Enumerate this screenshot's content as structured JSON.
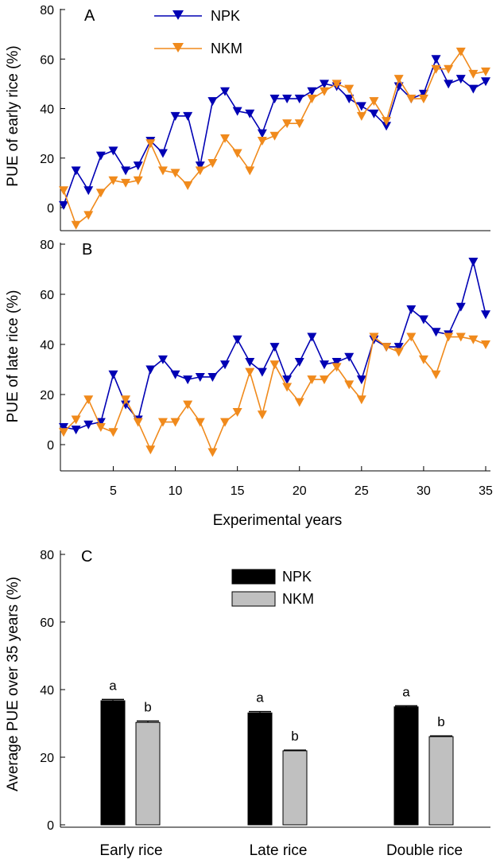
{
  "chart_data": [
    {
      "type": "line",
      "panel": "A",
      "ylabel": "PUE of early rice (%)",
      "xlabel": "",
      "xlim": [
        1,
        35.5
      ],
      "ylim": [
        -10,
        80
      ],
      "yticks": [
        0,
        20,
        40,
        60,
        80
      ],
      "xticks": [],
      "legend": {
        "position": "top-center",
        "entries": [
          "NPK",
          "NKM"
        ]
      },
      "x": [
        1,
        2,
        3,
        4,
        5,
        6,
        7,
        8,
        9,
        10,
        11,
        12,
        13,
        14,
        15,
        16,
        17,
        18,
        19,
        20,
        21,
        22,
        23,
        24,
        25,
        26,
        27,
        28,
        29,
        30,
        31,
        32,
        33,
        34,
        35
      ],
      "series": [
        {
          "name": "NPK",
          "color": "#0000b4",
          "values": [
            1,
            15,
            7,
            21,
            23,
            15,
            17,
            27,
            22,
            37,
            37,
            17,
            43,
            47,
            39,
            38,
            30,
            44,
            44,
            44,
            47,
            50,
            49,
            44,
            41,
            38,
            33,
            49,
            44,
            46,
            60,
            50,
            52,
            48,
            51
          ]
        },
        {
          "name": "NKM",
          "color": "#f08a1c",
          "values": [
            7,
            -7,
            -3,
            6,
            11,
            10,
            11,
            26,
            15,
            14,
            9,
            15,
            18,
            28,
            22,
            15,
            27,
            29,
            34,
            34,
            44,
            47,
            50,
            48,
            37,
            43,
            35,
            52,
            44,
            44,
            56,
            56,
            63,
            54,
            55
          ]
        }
      ]
    },
    {
      "type": "line",
      "panel": "B",
      "ylabel": "PUE of late rice (%)",
      "xlabel": "Experimental years",
      "xlim": [
        1,
        35.5
      ],
      "ylim": [
        -10,
        80
      ],
      "yticks": [
        0,
        20,
        40,
        60,
        80
      ],
      "xticks": [
        5,
        10,
        15,
        20,
        25,
        30,
        35
      ],
      "x": [
        1,
        2,
        3,
        4,
        5,
        6,
        7,
        8,
        9,
        10,
        11,
        12,
        13,
        14,
        15,
        16,
        17,
        18,
        19,
        20,
        21,
        22,
        23,
        24,
        25,
        26,
        27,
        28,
        29,
        30,
        31,
        32,
        33,
        34,
        35
      ],
      "series": [
        {
          "name": "NPK",
          "color": "#0000b4",
          "values": [
            7,
            6,
            8,
            9,
            28,
            16,
            10,
            30,
            34,
            28,
            26,
            27,
            27,
            32,
            42,
            33,
            29,
            39,
            26,
            33,
            43,
            32,
            33,
            35,
            26,
            42,
            39,
            39,
            54,
            50,
            45,
            44,
            55,
            73,
            52
          ]
        },
        {
          "name": "NKM",
          "color": "#f08a1c",
          "values": [
            5,
            10,
            18,
            7,
            5,
            18,
            9,
            -2,
            9,
            9,
            16,
            9,
            -3,
            9,
            13,
            29,
            12,
            32,
            23,
            17,
            26,
            26,
            31,
            24,
            18,
            43,
            39,
            37,
            43,
            34,
            28,
            43,
            43,
            42,
            40
          ]
        }
      ]
    },
    {
      "type": "bar",
      "panel": "C",
      "ylabel": "Average PUE over 35 years (%)",
      "xlabel": "",
      "ylim": [
        0,
        80
      ],
      "yticks": [
        0,
        20,
        40,
        60,
        80
      ],
      "categories": [
        "Early rice",
        "Late rice",
        "Double rice"
      ],
      "legend": {
        "position": "top-center",
        "entries": [
          "NPK",
          "NKM"
        ]
      },
      "series": [
        {
          "name": "NPK",
          "color": "#000000",
          "values": [
            36.7,
            33.1,
            34.9
          ],
          "errors": [
            0.4,
            0.4,
            0.3
          ],
          "labels": [
            "a",
            "a",
            "a"
          ]
        },
        {
          "name": "NKM",
          "color": "#c0c0c0",
          "values": [
            30.3,
            21.9,
            26.1
          ],
          "errors": [
            0.4,
            0.2,
            0.2
          ],
          "labels": [
            "b",
            "b",
            "b"
          ]
        }
      ]
    }
  ]
}
